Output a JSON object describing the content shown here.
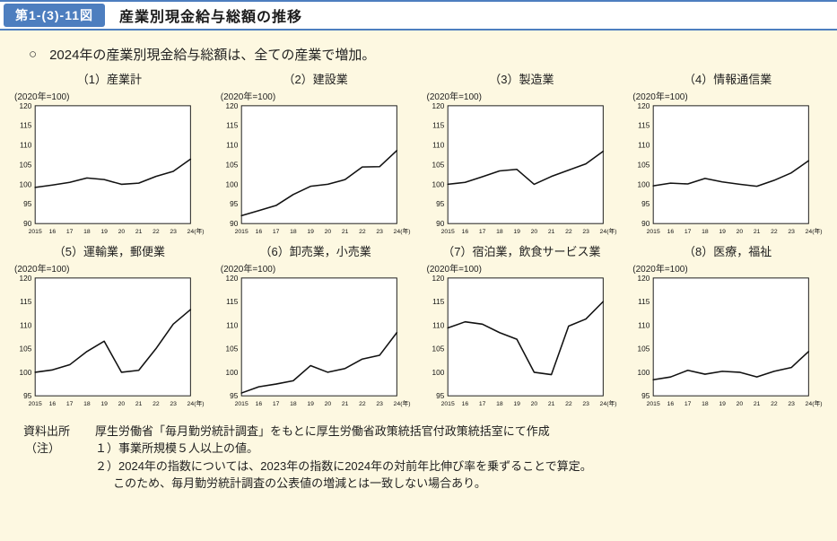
{
  "palette": {
    "background": "#fdf8e1",
    "accent_blue": "#4d7ebf",
    "header_bg": "#ffffff",
    "line_color": "#111111"
  },
  "header": {
    "figure_label": "第1-(3)-11図",
    "title": "産業別現金給与総額の推移"
  },
  "lead": {
    "bullet": "○",
    "text": "2024年の産業別現金給与総額は、全ての産業で増加。"
  },
  "chart_data": [
    {
      "type": "line",
      "title": "（1）産業計",
      "unit_label": "(2020年=100)",
      "x": [
        2015,
        2016,
        2017,
        2018,
        2019,
        2020,
        2021,
        2022,
        2023,
        2024
      ],
      "x_tick_labels": [
        "2015",
        "16",
        "17",
        "18",
        "19",
        "20",
        "21",
        "22",
        "23",
        "24"
      ],
      "x_suffix": "(年)",
      "values": [
        99.2,
        99.8,
        100.5,
        101.6,
        101.2,
        100.0,
        100.3,
        102.0,
        103.3,
        106.4
      ],
      "ylim": [
        90,
        120
      ],
      "ytick_step": 5,
      "grid": false,
      "legend": false
    },
    {
      "type": "line",
      "title": "（2）建設業",
      "unit_label": "(2020年=100)",
      "x": [
        2015,
        2016,
        2017,
        2018,
        2019,
        2020,
        2021,
        2022,
        2023,
        2024
      ],
      "x_tick_labels": [
        "2015",
        "16",
        "17",
        "18",
        "19",
        "20",
        "21",
        "22",
        "23",
        "24"
      ],
      "x_suffix": "(年)",
      "values": [
        92.0,
        93.3,
        94.6,
        97.4,
        99.5,
        100.0,
        101.2,
        104.4,
        104.5,
        108.6
      ],
      "ylim": [
        90,
        120
      ],
      "ytick_step": 5,
      "grid": false,
      "legend": false
    },
    {
      "type": "line",
      "title": "（3）製造業",
      "unit_label": "(2020年=100)",
      "x": [
        2015,
        2016,
        2017,
        2018,
        2019,
        2020,
        2021,
        2022,
        2023,
        2024
      ],
      "x_tick_labels": [
        "2015",
        "16",
        "17",
        "18",
        "19",
        "20",
        "21",
        "22",
        "23",
        "24"
      ],
      "x_suffix": "(年)",
      "values": [
        100.0,
        100.5,
        101.9,
        103.4,
        103.8,
        100.0,
        102.0,
        103.6,
        105.2,
        108.4
      ],
      "ylim": [
        90,
        120
      ],
      "ytick_step": 5,
      "grid": false,
      "legend": false
    },
    {
      "type": "line",
      "title": "（4）情報通信業",
      "unit_label": "(2020年=100)",
      "x": [
        2015,
        2016,
        2017,
        2018,
        2019,
        2020,
        2021,
        2022,
        2023,
        2024
      ],
      "x_tick_labels": [
        "2015",
        "16",
        "17",
        "18",
        "19",
        "20",
        "21",
        "22",
        "23",
        "24"
      ],
      "x_suffix": "(年)",
      "values": [
        99.6,
        100.3,
        100.1,
        101.5,
        100.6,
        100.0,
        99.5,
        101.0,
        102.9,
        106.0
      ],
      "ylim": [
        90,
        120
      ],
      "ytick_step": 5,
      "grid": false,
      "legend": false
    },
    {
      "type": "line",
      "title": "（5）運輸業，郵便業",
      "unit_label": "(2020年=100)",
      "x": [
        2015,
        2016,
        2017,
        2018,
        2019,
        2020,
        2021,
        2022,
        2023,
        2024
      ],
      "x_tick_labels": [
        "2015",
        "16",
        "17",
        "18",
        "19",
        "20",
        "21",
        "22",
        "23",
        "24"
      ],
      "x_suffix": "(年)",
      "values": [
        100.0,
        100.5,
        101.6,
        104.4,
        106.6,
        100.0,
        100.4,
        105.0,
        110.2,
        113.3
      ],
      "ylim": [
        95,
        120
      ],
      "ytick_step": 5,
      "grid": false,
      "legend": false
    },
    {
      "type": "line",
      "title": "（6）卸売業，小売業",
      "unit_label": "(2020年=100)",
      "x": [
        2015,
        2016,
        2017,
        2018,
        2019,
        2020,
        2021,
        2022,
        2023,
        2024
      ],
      "x_tick_labels": [
        "2015",
        "16",
        "17",
        "18",
        "19",
        "20",
        "21",
        "22",
        "23",
        "24"
      ],
      "x_suffix": "(年)",
      "values": [
        95.6,
        96.9,
        97.5,
        98.2,
        101.4,
        100.0,
        100.8,
        102.8,
        103.6,
        108.4
      ],
      "ylim": [
        95,
        120
      ],
      "ytick_step": 5,
      "grid": false,
      "legend": false
    },
    {
      "type": "line",
      "title": "（7）宿泊業，飲食サービス業",
      "unit_label": "(2020年=100)",
      "x": [
        2015,
        2016,
        2017,
        2018,
        2019,
        2020,
        2021,
        2022,
        2023,
        2024
      ],
      "x_tick_labels": [
        "2015",
        "16",
        "17",
        "18",
        "19",
        "20",
        "21",
        "22",
        "23",
        "24"
      ],
      "x_suffix": "(年)",
      "values": [
        109.4,
        110.7,
        110.2,
        108.4,
        107.0,
        100.0,
        99.5,
        109.8,
        111.3,
        115.0
      ],
      "ylim": [
        95,
        120
      ],
      "ytick_step": 5,
      "grid": false,
      "legend": false
    },
    {
      "type": "line",
      "title": "（8）医療，福祉",
      "unit_label": "(2020年=100)",
      "x": [
        2015,
        2016,
        2017,
        2018,
        2019,
        2020,
        2021,
        2022,
        2023,
        2024
      ],
      "x_tick_labels": [
        "2015",
        "16",
        "17",
        "18",
        "19",
        "20",
        "21",
        "22",
        "23",
        "24"
      ],
      "x_suffix": "(年)",
      "values": [
        98.4,
        99.0,
        100.4,
        99.6,
        100.2,
        100.0,
        99.0,
        100.2,
        101.0,
        104.4
      ],
      "ylim": [
        95,
        120
      ],
      "ytick_step": 5,
      "grid": false,
      "legend": false
    }
  ],
  "footer": {
    "source_label": "資料出所",
    "source_text": "厚生労働省「毎月勤労統計調査」をもとに厚生労働省政策統括官付政策統括室にて作成",
    "note_label": "（注）",
    "notes": [
      "１）事業所規模５人以上の値。",
      "２）2024年の指数については、2023年の指数に2024年の対前年比伸び率を乗ずることで算定。",
      "このため、毎月勤労統計調査の公表値の増減とは一致しない場合あり。"
    ]
  }
}
